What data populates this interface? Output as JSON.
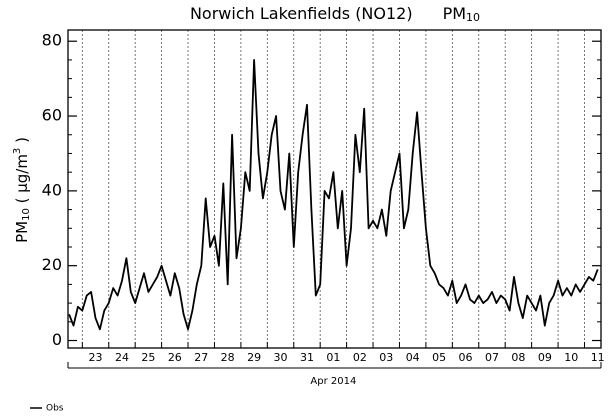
{
  "chart_data": {
    "type": "line",
    "title_parts": [
      "Norwich Lakenfields (NO12)",
      "PM",
      "10"
    ],
    "ylabel_parts": [
      "PM",
      "10",
      " ( µg/m",
      "3",
      " )"
    ],
    "x_sublabel": "Apr 2014",
    "x": [
      -12,
      -8,
      -4,
      0,
      4,
      8,
      12,
      16,
      20,
      24,
      28,
      32,
      36,
      40,
      44,
      48,
      52,
      56,
      60,
      64,
      68,
      72,
      76,
      80,
      84,
      88,
      92,
      96,
      100,
      104,
      108,
      112,
      116,
      120,
      124,
      128,
      132,
      136,
      140,
      144,
      148,
      152,
      156,
      160,
      164,
      168,
      172,
      176,
      180,
      184,
      188,
      192,
      196,
      200,
      204,
      208,
      212,
      216,
      220,
      224,
      228,
      232,
      236,
      240,
      244,
      248,
      252,
      256,
      260,
      264,
      268,
      272,
      276,
      280,
      284,
      288,
      292,
      296,
      300,
      304,
      308,
      312,
      316,
      320,
      324,
      328,
      332,
      336,
      340,
      344,
      348,
      352,
      356,
      360,
      364,
      368,
      372,
      376,
      380,
      384,
      388,
      392,
      396,
      400,
      404,
      408,
      412,
      416,
      420,
      424,
      428,
      432,
      436,
      440,
      444,
      448,
      452,
      456,
      460,
      464,
      468
    ],
    "series": [
      {
        "name": "Obs",
        "color": "#000000",
        "values": [
          7,
          4,
          9,
          8,
          12,
          13,
          6,
          3,
          8,
          10,
          14,
          12,
          16,
          22,
          13,
          10,
          14,
          18,
          13,
          15,
          17,
          20,
          16,
          12,
          18,
          14,
          7,
          3,
          8,
          15,
          20,
          38,
          25,
          28,
          20,
          42,
          15,
          55,
          22,
          30,
          45,
          40,
          75,
          50,
          38,
          45,
          55,
          60,
          40,
          35,
          50,
          25,
          45,
          55,
          63,
          35,
          12,
          15,
          40,
          38,
          45,
          30,
          40,
          20,
          30,
          55,
          45,
          62,
          30,
          32,
          30,
          35,
          28,
          40,
          45,
          50,
          30,
          35,
          50,
          61,
          45,
          30,
          20,
          18,
          15,
          14,
          12,
          16,
          10,
          12,
          15,
          11,
          10,
          12,
          10,
          11,
          13,
          10,
          12,
          11,
          8,
          17,
          10,
          6,
          12,
          10,
          8,
          12,
          4,
          10,
          12,
          16,
          12,
          14,
          12,
          15,
          13,
          15,
          17,
          16,
          19
        ]
      }
    ],
    "xlim": [
      -13,
      471
    ],
    "xticks": [
      {
        "value": 12,
        "label": "23"
      },
      {
        "value": 36,
        "label": "24"
      },
      {
        "value": 60,
        "label": "25"
      },
      {
        "value": 84,
        "label": "26"
      },
      {
        "value": 108,
        "label": "27"
      },
      {
        "value": 132,
        "label": "28"
      },
      {
        "value": 156,
        "label": "29"
      },
      {
        "value": 180,
        "label": "30"
      },
      {
        "value": 204,
        "label": "31"
      },
      {
        "value": 228,
        "label": "01"
      },
      {
        "value": 252,
        "label": "02"
      },
      {
        "value": 276,
        "label": "03"
      },
      {
        "value": 300,
        "label": "04"
      },
      {
        "value": 324,
        "label": "05"
      },
      {
        "value": 348,
        "label": "06"
      },
      {
        "value": 372,
        "label": "07"
      },
      {
        "value": 396,
        "label": "08"
      },
      {
        "value": 420,
        "label": "09"
      },
      {
        "value": 444,
        "label": "10"
      },
      {
        "value": 468,
        "label": "11"
      }
    ],
    "xgrid": [
      0,
      24,
      48,
      72,
      96,
      120,
      144,
      168,
      192,
      216,
      240,
      264,
      288,
      312,
      336,
      360,
      384,
      408,
      432,
      456
    ],
    "x_sublabel_at": 228,
    "ylim": [
      -2,
      83
    ],
    "yticks": [
      0,
      20,
      40,
      60,
      80
    ],
    "yminor": [
      5,
      10,
      15,
      25,
      30,
      35,
      45,
      50,
      55,
      65,
      70,
      75
    ],
    "grid": "dashed-x"
  }
}
